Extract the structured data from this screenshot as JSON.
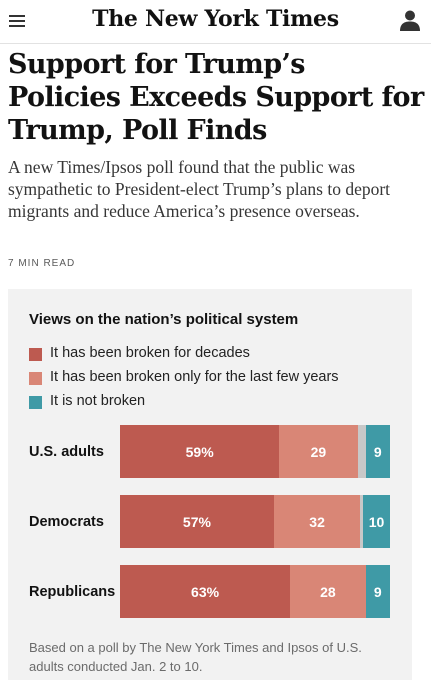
{
  "header": {
    "logo": "The New York Times",
    "menu_icon": "hamburger-menu-icon",
    "account_icon": "user-account-icon"
  },
  "article": {
    "headline": "Support for Trump’s Policies Exceeds Support for Trump, Poll Finds",
    "summary": "A new Times/Ipsos poll found that the public was sympathetic to President-elect Trump’s plans to deport migrants and reduce America’s presence overseas.",
    "read_time": "7 MIN READ"
  },
  "chart_data": {
    "type": "bar",
    "stacked": true,
    "orientation": "horizontal",
    "title": "Views on the nation’s political system",
    "categories": [
      "U.S. adults",
      "Democrats",
      "Republicans"
    ],
    "series": [
      {
        "name": "It has been broken for decades",
        "color": "#bd5a50",
        "values": [
          59,
          57,
          63
        ],
        "labels": [
          "59%",
          "57%",
          "63%"
        ]
      },
      {
        "name": "It has been broken only for the last few years",
        "color": "#d98676",
        "values": [
          29,
          32,
          28
        ],
        "labels": [
          "29",
          "32",
          "28"
        ]
      },
      {
        "name": "",
        "color": "#c8c8c8",
        "values": [
          3,
          1,
          0
        ],
        "labels": [
          "",
          "",
          ""
        ]
      },
      {
        "name": "It is not broken",
        "color": "#3f9aa6",
        "values": [
          9,
          10,
          9
        ],
        "labels": [
          "9",
          "10",
          "9"
        ]
      }
    ],
    "legend_position": "top",
    "grid": false,
    "footnote": "Based on a poll by The New York Times and Ipsos of U.S. adults conducted Jan. 2 to 10."
  }
}
